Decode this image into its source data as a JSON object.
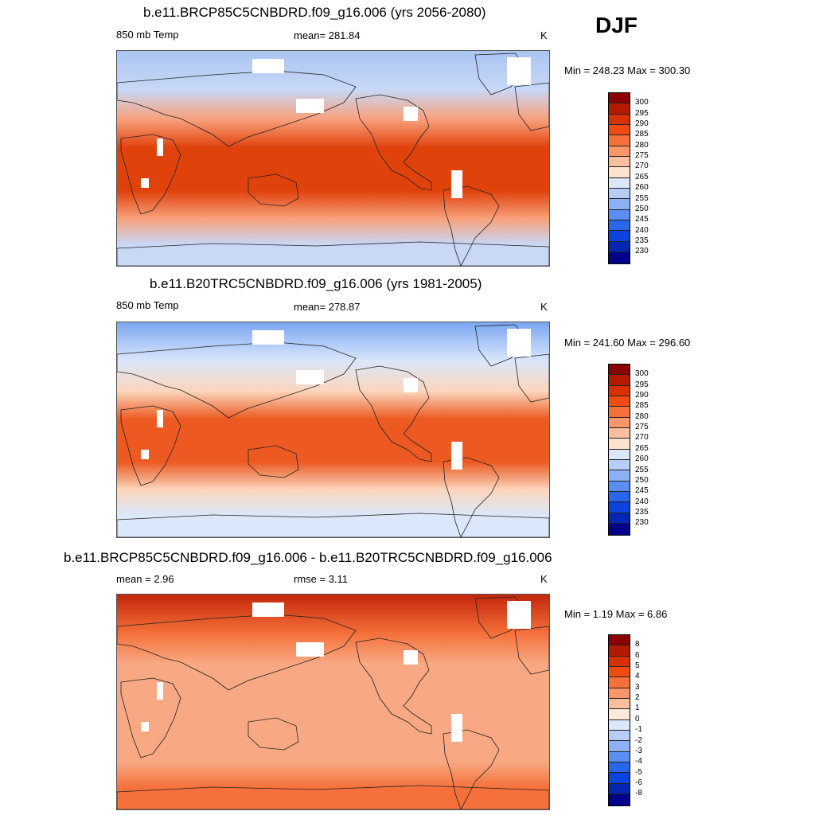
{
  "season": "DJF",
  "panels": [
    {
      "title": "b.e11.BRCP85C5CNBDRD.f09_g16.006 (yrs 2056-2080)",
      "left_label": "850 mb Temp",
      "mean_label": "mean= 281.84",
      "units": "K",
      "minmax": "Min = 248.23 Max = 300.30",
      "colorbar": {
        "labels": [
          "300",
          "295",
          "290",
          "285",
          "280",
          "275",
          "270",
          "265",
          "260",
          "255",
          "250",
          "245",
          "240",
          "235",
          "230"
        ],
        "colors": [
          "#8b0000",
          "#b31a00",
          "#d93000",
          "#ee4a12",
          "#f5703a",
          "#f9966a",
          "#fbbf9e",
          "#fde2cf",
          "#dbe7fb",
          "#b6cdf7",
          "#8cb2f3",
          "#5b8ef0",
          "#2a66ec",
          "#0b43dc",
          "#0426b4",
          "#00008b"
        ]
      },
      "field": {
        "equator_rgb": "#e0420c",
        "midlat_rgb": "#f8a07a",
        "pole_rgb": "#c8d8f6",
        "arctic_rgb": "#aac4f3"
      }
    },
    {
      "title": "b.e11.B20TRC5CNBDRD.f09_g16.006 (yrs 1981-2005)",
      "left_label": "850 mb Temp",
      "mean_label": "mean= 278.87",
      "units": "K",
      "minmax": "Min = 241.60 Max = 296.60",
      "colorbar": {
        "labels": [
          "300",
          "295",
          "290",
          "285",
          "280",
          "275",
          "270",
          "265",
          "260",
          "255",
          "250",
          "245",
          "240",
          "235",
          "230"
        ],
        "colors": [
          "#8b0000",
          "#b31a00",
          "#d93000",
          "#ee4a12",
          "#f5703a",
          "#f9966a",
          "#fbbf9e",
          "#fde2cf",
          "#dbe7fb",
          "#b6cdf7",
          "#8cb2f3",
          "#5b8ef0",
          "#2a66ec",
          "#0b43dc",
          "#0426b4",
          "#00008b"
        ]
      },
      "field": {
        "equator_rgb": "#ec5a22",
        "midlat_rgb": "#fbd6bd",
        "pole_rgb": "#dbe7fb",
        "arctic_rgb": "#7aa6f2"
      }
    },
    {
      "title": "b.e11.BRCP85C5CNBDRD.f09_g16.006 - b.e11.B20TRC5CNBDRD.f09_g16.006",
      "left_label": "mean =   2.96",
      "mean_label": "rmse =   3.11",
      "units": "K",
      "minmax": "Min =   1.19 Max =   6.86",
      "colorbar": {
        "labels": [
          "8",
          "6",
          "5",
          "4",
          "3",
          "2",
          "1",
          "0",
          "-1",
          "-2",
          "-3",
          "-4",
          "-5",
          "-6",
          "-8"
        ],
        "colors": [
          "#8b0000",
          "#b31a00",
          "#d93000",
          "#ee4a12",
          "#f5703a",
          "#f9966a",
          "#fbbf9e",
          "#fde9dc",
          "#dbe7fb",
          "#b6cdf7",
          "#8cb2f3",
          "#5b8ef0",
          "#2a66ec",
          "#0b43dc",
          "#0426b4",
          "#00008b"
        ]
      },
      "field": {
        "equator_rgb": "#f8a882",
        "midlat_rgb": "#f8a882",
        "pole_rgb": "#f5703a",
        "arctic_rgb": "#c2260a"
      }
    }
  ]
}
